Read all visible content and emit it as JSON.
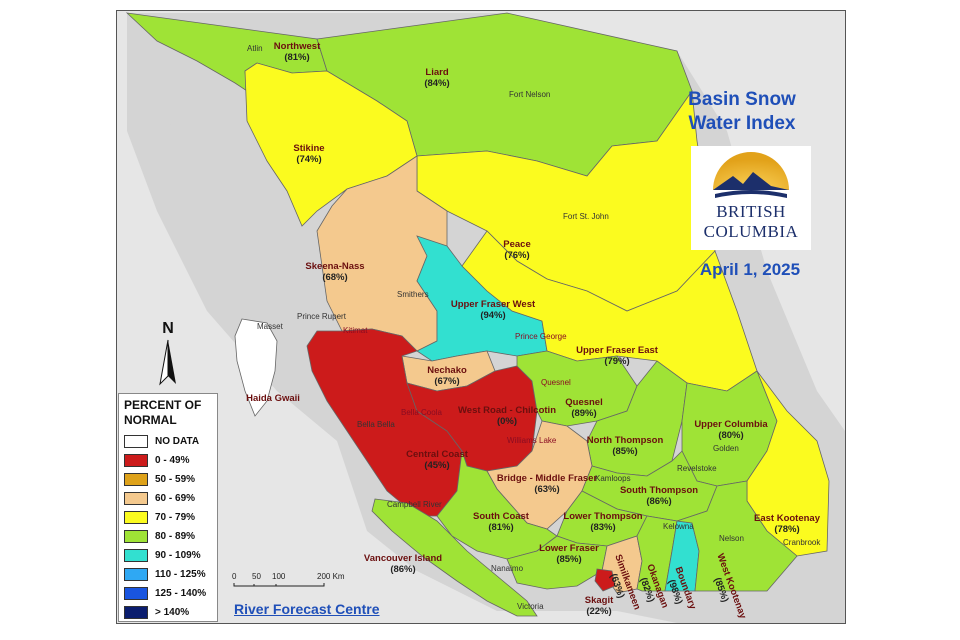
{
  "map": {
    "title_line1": "Basin Snow",
    "title_line2": "Water Index",
    "date": "April 1, 2025",
    "logo_line1": "BRITISH",
    "logo_line2": "COLUMBIA",
    "credit": "River Forecast Centre",
    "north_label": "N",
    "scale": {
      "labels": [
        "0",
        "50",
        "100",
        "200 Km"
      ]
    },
    "colors": {
      "no_data": "#ffffff",
      "c0_49": "#cc1b1b",
      "c50_59": "#dea21a",
      "c60_69": "#f4c98e",
      "c70_79": "#fbfb1f",
      "c80_89": "#9fe336",
      "c90_109": "#32e0d0",
      "c110_125": "#2fa8f3",
      "c125_140": "#1955e0",
      "c140": "#0a1d6e",
      "ocean": "#e6e6e6",
      "outside": "#d4d4d4"
    }
  },
  "legend": {
    "title_line1": "PERCENT OF",
    "title_line2": "NORMAL",
    "items": [
      {
        "label": "NO DATA",
        "color": "#ffffff"
      },
      {
        "label": "0 - 49%",
        "color": "#cc1b1b"
      },
      {
        "label": "50 - 59%",
        "color": "#dea21a"
      },
      {
        "label": "60 - 69%",
        "color": "#f4c98e"
      },
      {
        "label": "70 - 79%",
        "color": "#fbfb1f"
      },
      {
        "label": "80 - 89%",
        "color": "#9fe336"
      },
      {
        "label": "90 - 109%",
        "color": "#32e0d0"
      },
      {
        "label": "110 - 125%",
        "color": "#2fa8f3"
      },
      {
        "label": "125 - 140%",
        "color": "#1955e0"
      },
      {
        "label": "> 140%",
        "color": "#0a1d6e"
      }
    ]
  },
  "basins": [
    {
      "name": "Northwest",
      "pct": "(81%)",
      "value": 81
    },
    {
      "name": "Liard",
      "pct": "(84%)",
      "value": 84
    },
    {
      "name": "Stikine",
      "pct": "(74%)",
      "value": 74
    },
    {
      "name": "Peace",
      "pct": "(76%)",
      "value": 76
    },
    {
      "name": "Skeena-Nass",
      "pct": "(68%)",
      "value": 68
    },
    {
      "name": "Upper Fraser West",
      "pct": "(94%)",
      "value": 94
    },
    {
      "name": "Upper Fraser East",
      "pct": "(79%)",
      "value": 79
    },
    {
      "name": "Nechako",
      "pct": "(67%)",
      "value": 67
    },
    {
      "name": "West Road - Chilcotin",
      "pct": "(0%)",
      "value": 0
    },
    {
      "name": "Quesnel",
      "pct": "(89%)",
      "value": 89
    },
    {
      "name": "Central Coast",
      "pct": "(45%)",
      "value": 45
    },
    {
      "name": "Upper Columbia",
      "pct": "(80%)",
      "value": 80
    },
    {
      "name": "North Thompson",
      "pct": "(85%)",
      "value": 85
    },
    {
      "name": "Bridge - Middle Fraser",
      "pct": "(63%)",
      "value": 63
    },
    {
      "name": "South Thompson",
      "pct": "(86%)",
      "value": 86
    },
    {
      "name": "South Coast",
      "pct": "(81%)",
      "value": 81
    },
    {
      "name": "Lower Thompson",
      "pct": "(83%)",
      "value": 83
    },
    {
      "name": "East Kootenay",
      "pct": "(78%)",
      "value": 78
    },
    {
      "name": "Lower Fraser",
      "pct": "(85%)",
      "value": 85
    },
    {
      "name": "Vancouver Island",
      "pct": "(86%)",
      "value": 86
    },
    {
      "name": "Skagit",
      "pct": "(22%)",
      "value": 22
    },
    {
      "name": "Similkameen",
      "pct": "(63%)",
      "value": 63
    },
    {
      "name": "Okanagan",
      "pct": "(82%)",
      "value": 82
    },
    {
      "name": "Boundary",
      "pct": "(98%)",
      "value": 98
    },
    {
      "name": "West Kootenay",
      "pct": "(85%)",
      "value": 85
    },
    {
      "name": "Haida Gwaii",
      "pct": "",
      "value": null
    }
  ],
  "towns": [
    "Atlin",
    "Fort Nelson",
    "Fort St. John",
    "Smithers",
    "Prince Rupert",
    "Masset",
    "Kitimat",
    "Prince George",
    "Quesnel",
    "Bella Coola",
    "Bella Bella",
    "Williams Lake",
    "Revelstoke",
    "Golden",
    "Kamloops",
    "Kelowna",
    "Nelson",
    "Cranbrook",
    "Campbell River",
    "Nanaimo",
    "Victoria"
  ]
}
